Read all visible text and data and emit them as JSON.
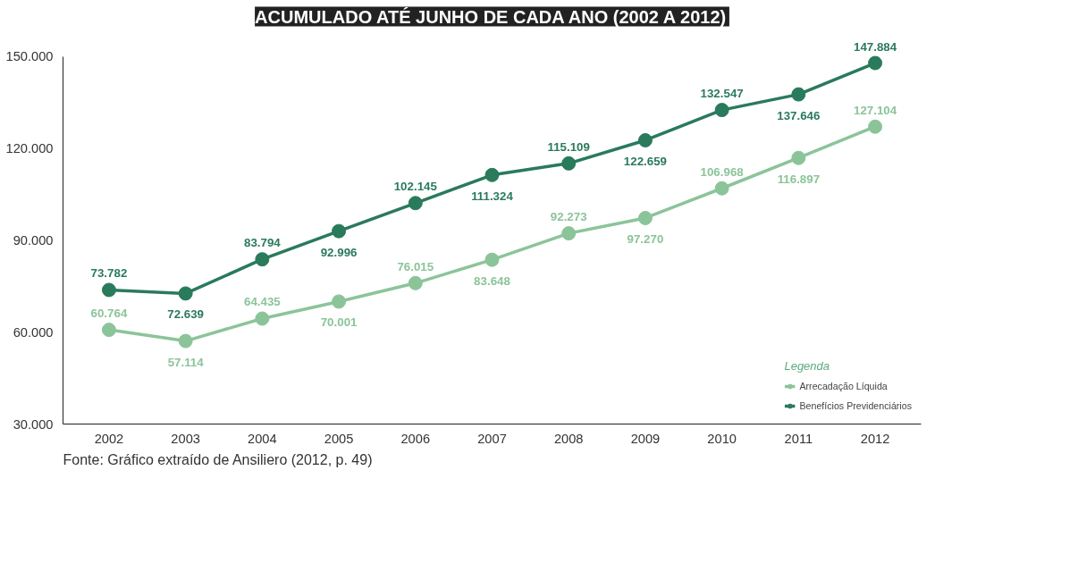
{
  "chart_data": {
    "type": "line",
    "title": "ACUMULADO ATÉ JUNHO DE CADA ANO (2002 A 2012)",
    "categories": [
      "2002",
      "2003",
      "2004",
      "2005",
      "2006",
      "2007",
      "2008",
      "2009",
      "2010",
      "2011",
      "2012"
    ],
    "series": [
      {
        "name": "Arrecadação Líquida",
        "color": "#8cc49a",
        "values": [
          60764,
          57114,
          64435,
          70001,
          76015,
          83648,
          92273,
          97270,
          106968,
          116897,
          127104
        ],
        "value_labels": [
          "60.764",
          "57.114",
          "64.435",
          "70.001",
          "76.015",
          "83.648",
          "92.273",
          "97.270",
          "106.968",
          "116.897",
          "127.104"
        ]
      },
      {
        "name": "Benefícios Previdenciários",
        "color": "#2a7a5c",
        "values": [
          73782,
          72639,
          83794,
          92996,
          102145,
          111324,
          115109,
          122659,
          132547,
          137646,
          147884
        ],
        "value_labels": [
          "73.782",
          "72.639",
          "83.794",
          "92.996",
          "102.145",
          "111.324",
          "115.109",
          "122.659",
          "132.547",
          "137.646",
          "147.884"
        ]
      }
    ],
    "ylim": [
      30000,
      150000
    ],
    "yticks": [
      {
        "value": 30000,
        "label": "30.000"
      },
      {
        "value": 60000,
        "label": "60.000"
      },
      {
        "value": 90000,
        "label": "90.000"
      },
      {
        "value": 120000,
        "label": "120.000"
      },
      {
        "value": 150000,
        "label": "150.000"
      }
    ],
    "grid": false,
    "legend": "bottom right",
    "legend_title": "Legenda",
    "marker": "circle",
    "line_style": "solid",
    "annotations": [
      "Fonte: Gráfico extraído de Ansiliero (2012, p. 49)"
    ]
  }
}
